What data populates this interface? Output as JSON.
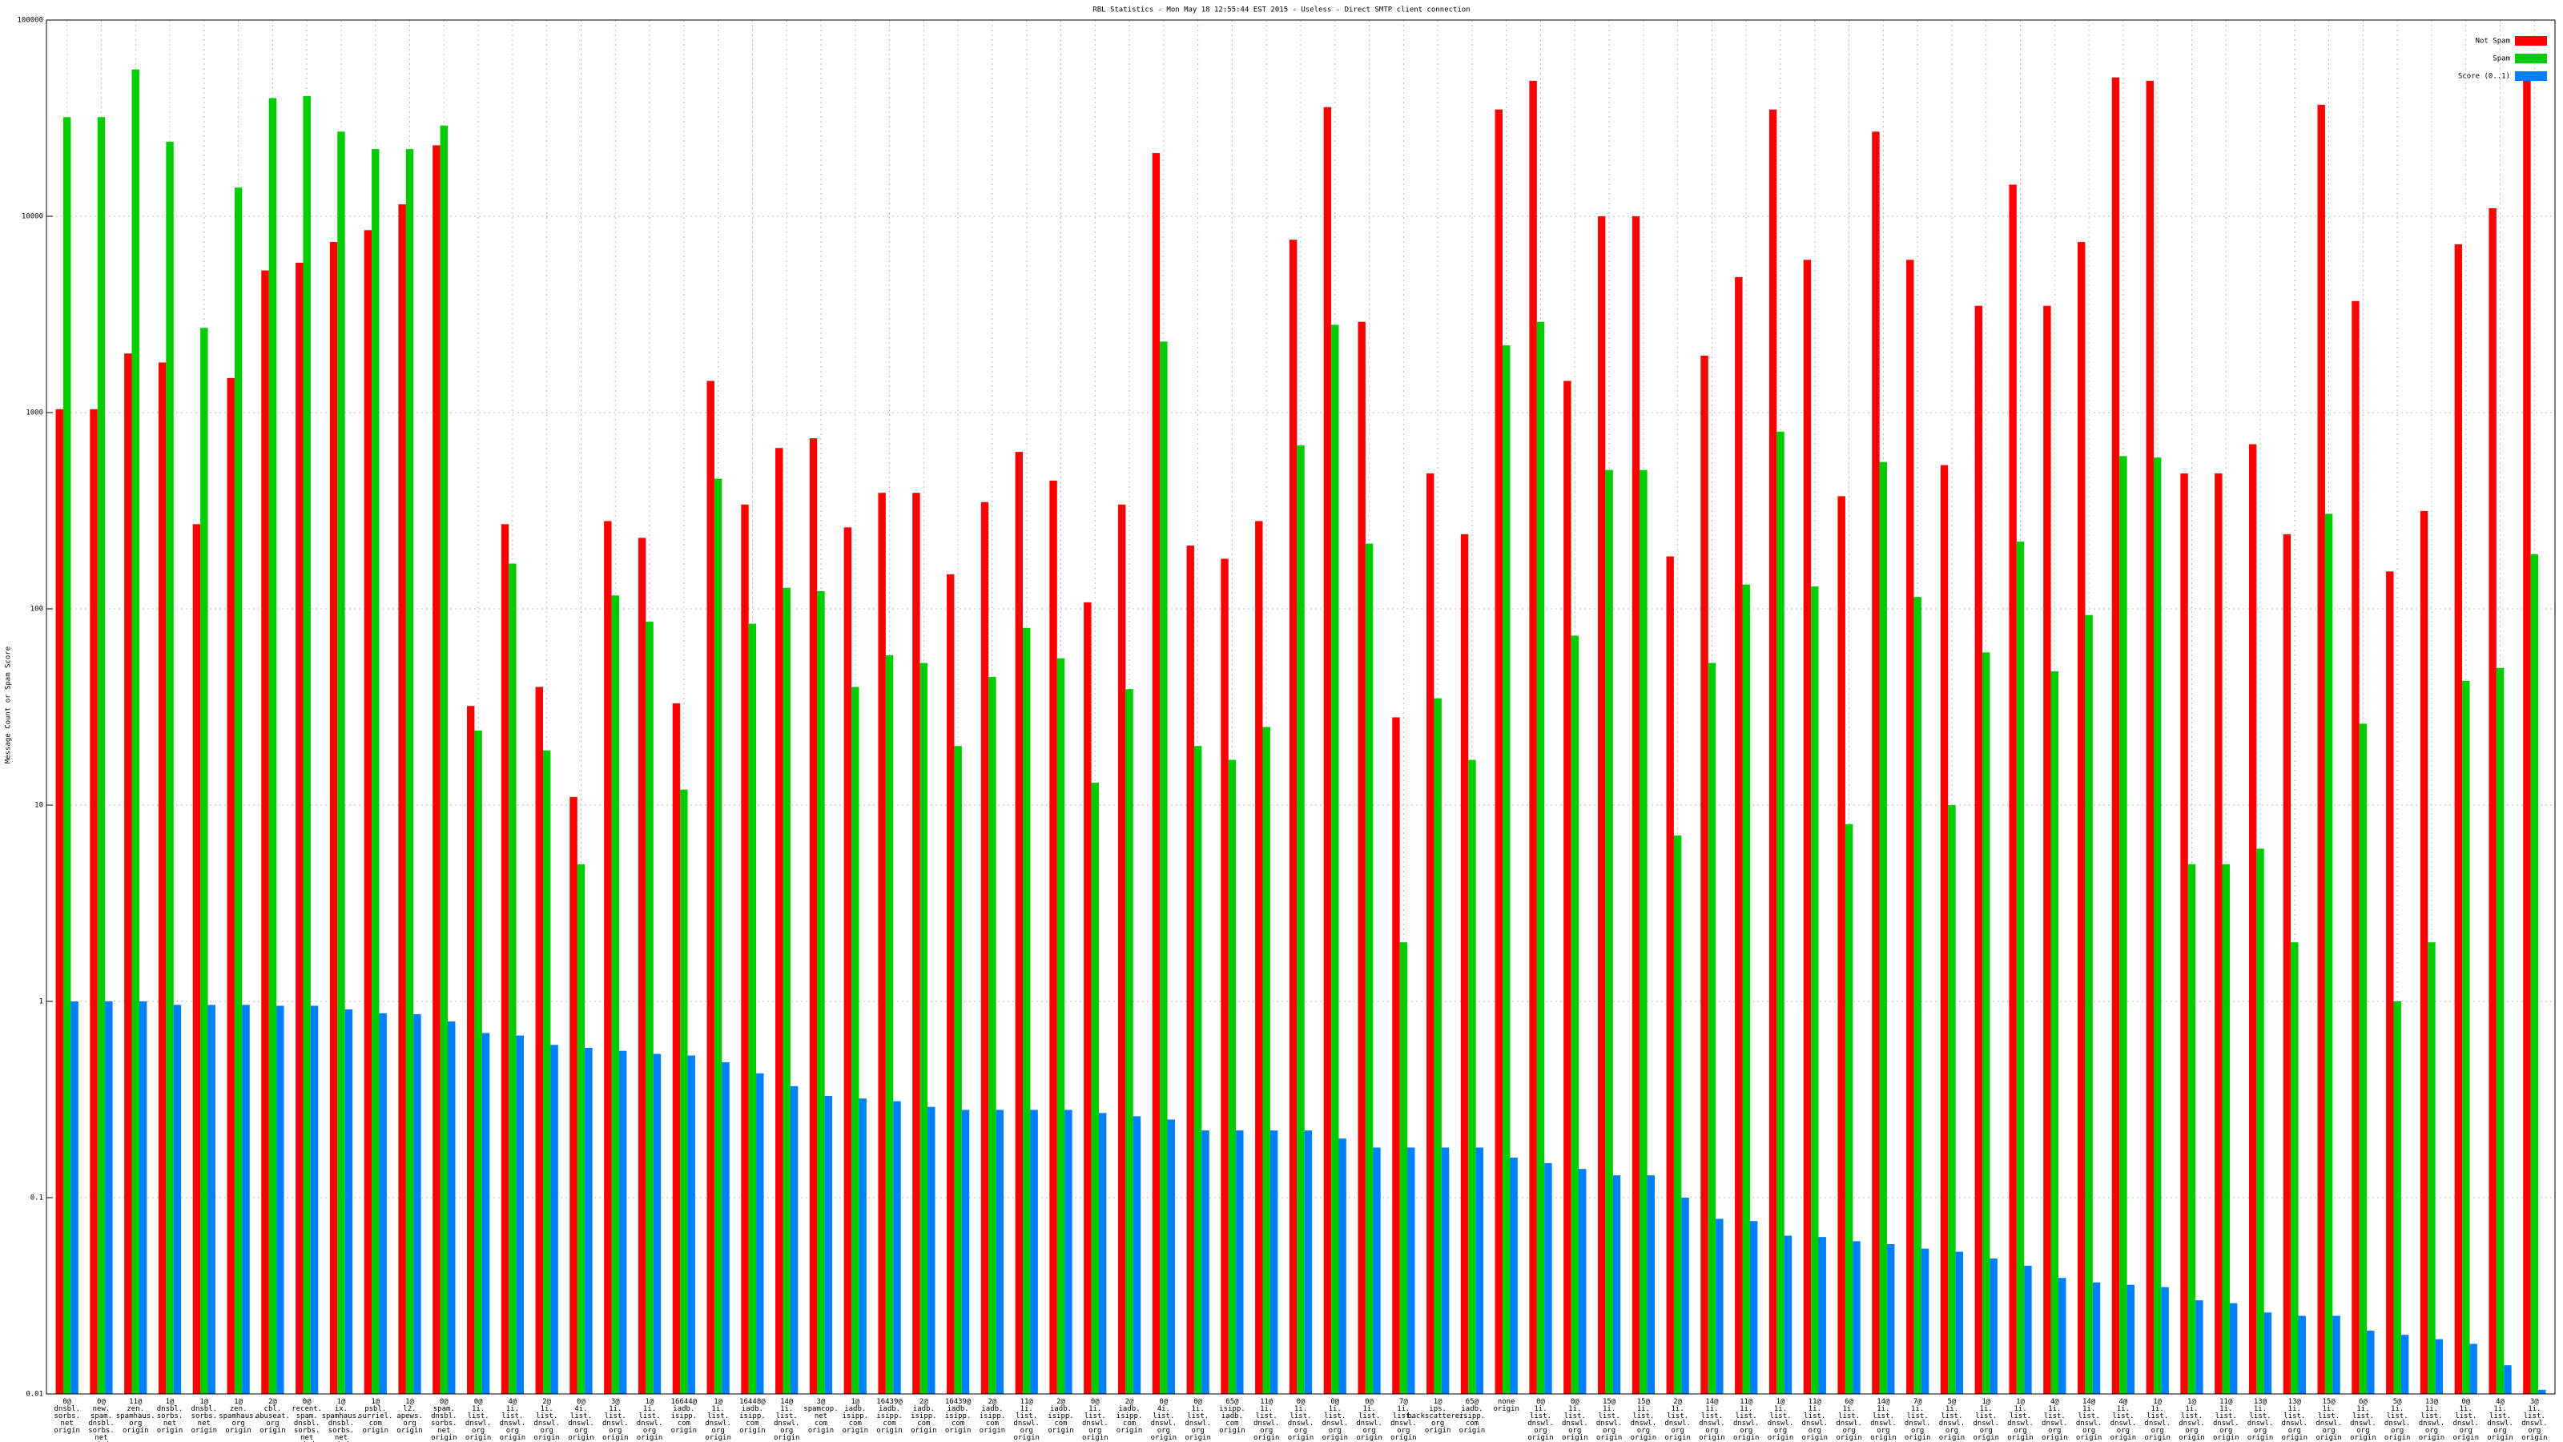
{
  "chart_data": {
    "type": "bar",
    "log": true,
    "grid": true,
    "legend": "top right",
    "title": "RBL Statistics - Mon May 18 12:55:44 EST 2015 - Useless - Direct SMTP client connection",
    "y_label": "Message Count or Spam Score",
    "ylim": [
      0.01,
      100000
    ],
    "yticks": [
      0.01,
      0.1,
      1,
      10,
      100,
      1000,
      10000,
      100000
    ],
    "categories": [
      "0@\ndnsbl.\nsorbs.\nnet\norigin",
      "0@\nnew.\nspam.\ndnsbl.\nsorbs.\nnet\norigin",
      "11@\nzen.\nspamhaus.\norg\norigin",
      "1@\ndnsbl.\nsorbs.\nnet\norigin",
      "1@\ndnsbl.\nsorbs.\nnet\norigin",
      "1@\nzen.\nspamhaus.\norg\norigin",
      "2@\ncbl.\nabuseat.\norg\norigin",
      "0@\nrecent.\nspam.\ndnsbl.\nsorbs.\nnet\norigin",
      "1@\nix.\nspamhaus.\ndnsbl.\nsorbs.\nnet\norigin",
      "1@\npsbl.\nsurriel.\ncom\norigin",
      "1@\nl2.\napews.\norg\norigin",
      "0@\nspam.\ndnsbl.\nsorbs.\nnet\norigin",
      "0@\n1i.\nlist.\ndnswl.\norg\norigin",
      "4@\n1i.\nlist.\ndnswl.\norg\norigin",
      "2@\n1i.\nlist.\ndnswl.\norg\norigin",
      "0@\n4i.\nlist.\ndnswl.\norg\norigin",
      "3@\n1i.\nlist.\ndnswl.\norg\norigin",
      "1@\n1i.\nlist.\ndnswl.\norg\norigin",
      "16644@\niadb.\nisipp.\ncom\norigin",
      "1@\n1i.\nlist.\ndnswl.\norg\norigin",
      "16448@\niadb.\nisipp.\ncom\norigin",
      "14@\n1i.\nlist.\ndnswl.\norg\norigin",
      "3@\nspamcop.\nnet\ncom\norigin",
      "1@\niadb.\nisipp.\ncom\norigin",
      "16439@\niadb.\nisipp.\ncom\norigin",
      "2@\niadb.\nisipp.\ncom\norigin",
      "16439@\niadb.\nisipp.\ncom\norigin",
      "2@\niadb.\nisipp.\ncom\norigin",
      "11@\n1i.\nlist.\ndnswl.\norg\norigin",
      "2@\niadb.\nisipp.\ncom\norigin",
      "0@\n1i.\nlist.\ndnswl.\norg\norigin",
      "2@\niadb.\nisipp.\ncom\norigin",
      "0@\n4i.\nlist.\ndnswl.\norg\norigin",
      "0@\n1i.\nlist.\ndnswl.\norg\norigin",
      "65@\nisipp.\niadb.\ncom\norigin",
      "11@\n1i.\nlist.\ndnswl.\norg\norigin",
      "0@\n1i.\nlist.\ndnswl.\norg\norigin",
      "0@\n1i.\nlist.\ndnswl.\norg\norigin",
      "0@\n1i.\nlist.\ndnswl.\norg\norigin",
      "7@\n1i.\nlist.\ndnswl.\norg\norigin",
      "1@\nips.\nbackscatterer.\norg\norigin",
      "65@\niadb.\nisipp.\ncom\norigin",
      "none\norigin",
      "0@\n1i.\nlist.\ndnswl.\norg\norigin",
      "0@\n1i.\nlist.\ndnswl.\norg\norigin",
      "15@\n1i.\nlist.\ndnswl.\norg\norigin",
      "15@\n1i.\nlist.\ndnswl.\norg\norigin",
      "2@\n1i.\nlist.\ndnswl.\norg\norigin",
      "14@\n1i.\nlist.\ndnswl.\norg\norigin",
      "11@\n1i.\nlist.\ndnswl.\norg\norigin",
      "1@\n1i.\nlist.\ndnswl.\norg\norigin",
      "11@\n1i.\nlist.\ndnswl.\norg\norigin",
      "6@\n1i.\nlist.\ndnswl.\norg\norigin",
      "14@\n1i.\nlist.\ndnswl.\norg\norigin",
      "7@\n1i.\nlist.\ndnswl.\norg\norigin",
      "5@\n1i.\nlist.\ndnswl.\norg\norigin",
      "1@\n1i.\nlist.\ndnswl.\norg\norigin",
      "1@\n1i.\nlist.\ndnswl.\norg\norigin",
      "4@\n1i.\nlist.\ndnswl.\norg\norigin",
      "14@\n1i.\nlist.\ndnswl.\norg\norigin",
      "4@\n1i.\nlist.\ndnswl.\norg\norigin",
      "1@\n1i.\nlist.\ndnswl.\norg\norigin",
      "1@\n1i.\nlist.\ndnswl.\norg\norigin",
      "11@\n1i.\nlist.\ndnswl.\norg\norigin",
      "13@\n1i.\nlist.\ndnswl.\norg\norigin",
      "13@\n1i.\nlist.\ndnswl.\norg\norigin",
      "15@\n1i.\nlist.\ndnswl.\norg\norigin",
      "6@\n1i.\nlist.\ndnswl.\norg\norigin",
      "5@\n1i.\nlist.\ndnswl.\norg\norigin",
      "13@\n1i.\nlist.\ndnswl.\norg\norigin",
      "0@\n1i.\nlist.\ndnswl.\norg\norigin",
      "4@\n1i.\nlist.\ndnswl.\norg\norigin",
      "3@\n1i.\nlist.\ndnswl.\norg\norigin"
    ],
    "series": [
      {
        "name": "Not Spam",
        "color": "#ff0000",
        "values": [
          1040,
          1040,
          2000,
          1800,
          270,
          1500,
          5300,
          5800,
          7400,
          8500,
          11500,
          23000,
          32,
          270,
          40,
          11,
          280,
          230,
          33,
          1450,
          340,
          660,
          740,
          260,
          390,
          390,
          150,
          350,
          630,
          450,
          108,
          340,
          21000,
          210,
          180,
          280,
          7600,
          36000,
          2900,
          28,
          490,
          240,
          35000,
          49000,
          1450,
          10000,
          10000,
          185,
          1950,
          4900,
          35000,
          6000,
          375,
          27000,
          6000,
          540,
          3500,
          14500,
          3500,
          7400,
          51000,
          49000,
          490,
          490,
          690,
          240,
          37000,
          3700,
          155,
          315,
          7200,
          11000,
          53000
        ]
      },
      {
        "name": "Spam",
        "color": "#00cc00",
        "values": [
          32000,
          32000,
          56000,
          24000,
          2700,
          14000,
          40000,
          41000,
          27000,
          22000,
          22000,
          29000,
          24,
          170,
          19,
          5,
          117,
          86,
          12,
          460,
          84,
          128,
          123,
          40,
          58,
          53,
          20,
          45,
          80,
          56,
          13,
          39,
          2300,
          20,
          17,
          25,
          680,
          2800,
          215,
          2,
          35,
          17,
          2200,
          2900,
          73,
          510,
          510,
          7,
          53,
          133,
          800,
          130,
          8,
          560,
          115,
          10,
          60,
          220,
          48,
          93,
          600,
          590,
          5,
          5,
          6,
          2,
          305,
          26,
          1,
          2,
          43,
          50,
          190
        ]
      },
      {
        "name": "Score (0..1)",
        "color": "#0080ff",
        "values": [
          1.0,
          1.0,
          1.0,
          0.96,
          0.96,
          0.96,
          0.95,
          0.95,
          0.91,
          0.87,
          0.86,
          0.79,
          0.69,
          0.67,
          0.6,
          0.58,
          0.56,
          0.54,
          0.53,
          0.49,
          0.43,
          0.37,
          0.33,
          0.32,
          0.31,
          0.29,
          0.28,
          0.28,
          0.28,
          0.28,
          0.27,
          0.26,
          0.25,
          0.22,
          0.22,
          0.22,
          0.22,
          0.2,
          0.18,
          0.18,
          0.18,
          0.18,
          0.16,
          0.15,
          0.14,
          0.13,
          0.13,
          0.1,
          0.078,
          0.076,
          0.064,
          0.063,
          0.06,
          0.058,
          0.055,
          0.053,
          0.049,
          0.045,
          0.039,
          0.037,
          0.036,
          0.035,
          0.03,
          0.029,
          0.026,
          0.025,
          0.025,
          0.021,
          0.02,
          0.019,
          0.018,
          0.014,
          0.0105
        ]
      }
    ]
  }
}
